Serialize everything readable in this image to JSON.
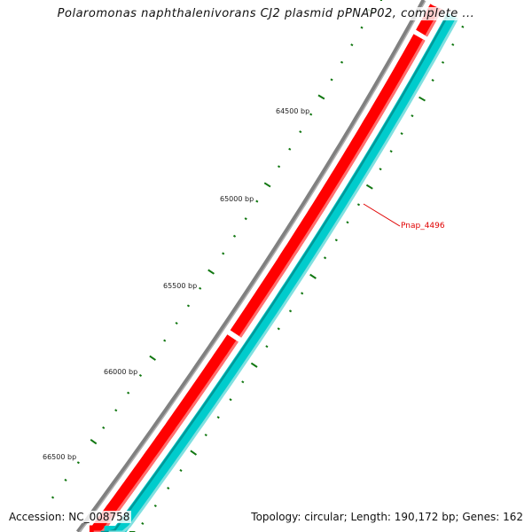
{
  "title": "Polaromonas naphthalenivorans CJ2 plasmid pPNAP02, complete ...",
  "accession": "Accession: NC_008758",
  "summary": "Topology: circular; Length: 190,172 bp; Genes: 162",
  "tick_labels": [
    "64500 bp",
    "65000 bp",
    "65500 bp",
    "66000 bp",
    "66500 bp"
  ],
  "gene_label": "Pnap_4496",
  "colors": {
    "backbone": "#808080",
    "forward": "#ff0000",
    "reverse": "#00cccc",
    "ticks": "#117711",
    "label": "#e00000"
  }
}
